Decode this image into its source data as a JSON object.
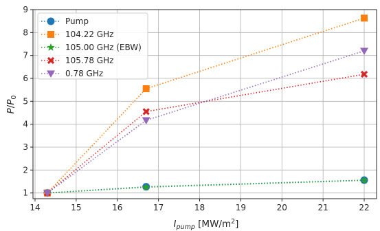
{
  "chart_data": {
    "type": "line",
    "xlabel": "I_pump [MW/m²]",
    "ylabel": "P/P₀",
    "xlim": [
      13.95,
      22.3
    ],
    "ylim": [
      0.75,
      9.0
    ],
    "xticks": [
      14,
      15,
      16,
      17,
      18,
      19,
      20,
      21,
      22
    ],
    "yticks": [
      1,
      2,
      3,
      4,
      5,
      6,
      7,
      8,
      9
    ],
    "grid": true,
    "legend_position": "top-left",
    "line_style": "dotted",
    "x": [
      14.3,
      16.7,
      22.0
    ],
    "series": [
      {
        "name": "Pump",
        "values": [
          1.0,
          1.27,
          1.56
        ],
        "color": "#1f77b4",
        "marker": "circle"
      },
      {
        "name": "104.22 GHz",
        "values": [
          1.0,
          5.55,
          8.63
        ],
        "color": "#ff7f0e",
        "marker": "square"
      },
      {
        "name": "105.00 GHz (EBW)",
        "values": [
          1.0,
          1.25,
          1.55
        ],
        "color": "#2ca02c",
        "marker": "star"
      },
      {
        "name": "105.78 GHz",
        "values": [
          1.0,
          4.55,
          6.18
        ],
        "color": "#d62728",
        "marker": "x"
      },
      {
        "name": "0.78 GHz",
        "values": [
          1.0,
          4.17,
          7.2
        ],
        "color": "#9467bd",
        "marker": "triangle-down"
      }
    ]
  }
}
